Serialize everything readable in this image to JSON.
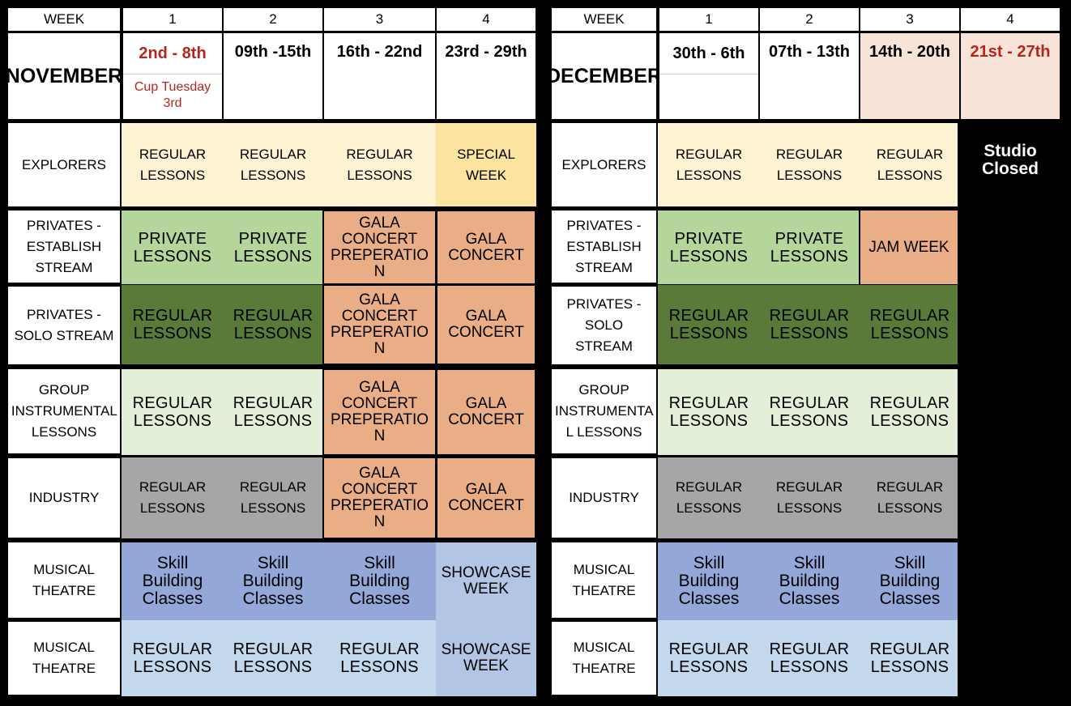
{
  "week_header": "WEEK",
  "week_numbers": [
    "1",
    "2",
    "3",
    "4"
  ],
  "november": {
    "month": "NOVEMBER",
    "weeks": [
      "2nd - 8th",
      "09th -15th",
      "16th - 22nd",
      "23rd - 29th"
    ],
    "note": "Cup Tuesday 3rd"
  },
  "december": {
    "month": "DECEMBER",
    "weeks": [
      "30th - 6th",
      "07th - 13th",
      "14th - 20th",
      "21st - 27th"
    ],
    "closed": "Studio Closed"
  },
  "rows": {
    "explorers": "EXPLORERS",
    "privates_establish": "PRIVATES - ESTABLISH STREAM",
    "privates_solo": "PRIVATES - SOLO STREAM",
    "group_nov": "GROUP INSTRUMENTAL LESSONS",
    "group_dec": "GROUP INSTRUMENTA L LESSONS",
    "industry": "INDUSTRY",
    "musical_theatre": "MUSICAL THEATRE"
  },
  "cells": {
    "regular_lessons": "REGULAR LESSONS",
    "special_week": "SPECIAL WEEK",
    "private_lessons": "PRIVATE LESSONS",
    "gala_prep": "GALA CONCERT PREPERATIO N",
    "gala_concert": "GALA CONCERT",
    "jam_week": "JAM WEEK",
    "skill_building": "Skill Building Classes",
    "showcase_week": "SHOWCASE WEEK"
  },
  "colors": {
    "cream": "#fdf2d2",
    "special_yellow": "#fbe4a0",
    "light_green": "#b5d69b",
    "dark_green": "#5a7a3a",
    "pale_green": "#e3efd9",
    "gala_orange": "#eaae86",
    "industry_grey": "#a6a6a6",
    "skill_blue": "#93a8d8",
    "light_blue": "#c3d7ed",
    "showcase_blue": "#b3c5e5",
    "pink": "#f8e3d8",
    "date_red": "#b3261e"
  }
}
